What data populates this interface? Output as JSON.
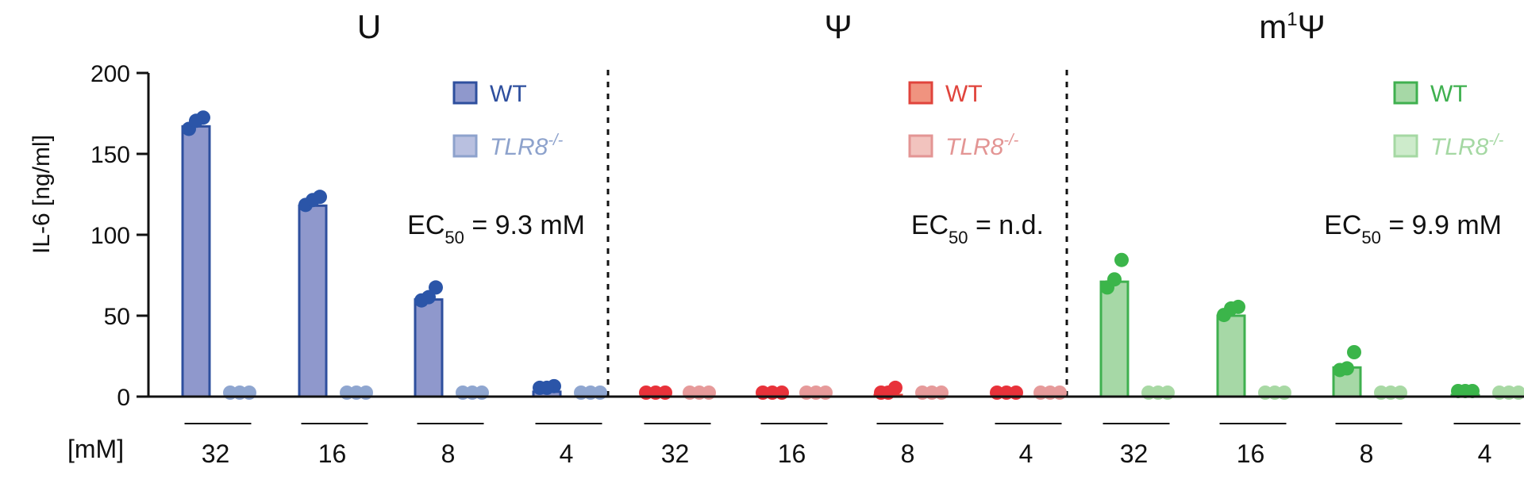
{
  "chart_data": {
    "type": "bar",
    "ylabel": "IL-6 [ng/ml]",
    "ylim": [
      0,
      200
    ],
    "yticks": [
      0,
      50,
      100,
      150,
      200
    ],
    "x_unit_label": "[mM]",
    "categories": [
      "32",
      "16",
      "8",
      "4"
    ],
    "panels": [
      {
        "id": "U",
        "title": "U",
        "ec50_label": "EC",
        "ec50_sub": "50",
        "ec50_value": " = 9.3 mM",
        "colors": {
          "wt_fill": "#8f98cc",
          "wt_edge": "#2e4f9e",
          "wt_dot": "#2b55a8",
          "ko_fill": "#b9c0e0",
          "ko_edge": "#8da2cc",
          "ko_dot": "#8fa6d0",
          "legend_text_wt": "#2e4f9e",
          "legend_text_ko": "#8da2cc"
        },
        "legend": {
          "wt": "WT",
          "ko": "TLR8",
          "ko_sup": "-/-"
        },
        "series": [
          {
            "name": "WT",
            "values": [
              167,
              118,
              60,
              3
            ],
            "points": [
              [
                163,
                170,
                168
              ],
              [
                116,
                121,
                119
              ],
              [
                57,
                65,
                59
              ],
              [
                3,
                4,
                3
              ]
            ]
          },
          {
            "name": "TLR8-/-",
            "values": [
              0,
              0,
              0,
              0
            ],
            "points": [
              [
                0,
                0,
                0
              ],
              [
                0,
                0,
                0
              ],
              [
                0,
                0,
                0
              ],
              [
                0,
                0,
                0
              ]
            ]
          }
        ]
      },
      {
        "id": "psi",
        "title": "Ψ",
        "ec50_label": "EC",
        "ec50_sub": "50",
        "ec50_value": " = n.d.",
        "colors": {
          "wt_fill": "#f0937f",
          "wt_edge": "#e0443c",
          "wt_dot": "#e8323a",
          "ko_fill": "#f2c3be",
          "ko_edge": "#e39594",
          "ko_dot": "#e69a9a",
          "legend_text_wt": "#e0443c",
          "legend_text_ko": "#e39594"
        },
        "legend": {
          "wt": "WT",
          "ko": "TLR8",
          "ko_sup": "-/-"
        },
        "series": [
          {
            "name": "WT",
            "values": [
              0,
              0,
              1,
              0
            ],
            "points": [
              [
                0,
                0,
                0
              ],
              [
                0,
                0,
                0
              ],
              [
                0,
                3,
                0
              ],
              [
                0,
                0,
                0
              ]
            ]
          },
          {
            "name": "TLR8-/-",
            "values": [
              0,
              0,
              0,
              0
            ],
            "points": [
              [
                0,
                0,
                0
              ],
              [
                0,
                0,
                0
              ],
              [
                0,
                0,
                0
              ],
              [
                0,
                0,
                0
              ]
            ]
          }
        ]
      },
      {
        "id": "m1psi",
        "title": "m",
        "title_sup": "1",
        "title_tail": "Ψ",
        "ec50_label": "EC",
        "ec50_sub": "50",
        "ec50_value": " = 9.9 mM",
        "colors": {
          "wt_fill": "#a6d8a6",
          "wt_edge": "#3fb04f",
          "wt_dot": "#3bb54a",
          "ko_fill": "#cdebcb",
          "ko_edge": "#a5d8a3",
          "ko_dot": "#a8d9a4",
          "legend_text_wt": "#3fb04f",
          "legend_text_ko": "#a5d8a3"
        },
        "legend": {
          "wt": "WT",
          "ko": "TLR8",
          "ko_sup": "-/-"
        },
        "series": [
          {
            "name": "WT",
            "values": [
              71,
              50,
              18,
              1
            ],
            "points": [
              [
                65,
                82,
                70
              ],
              [
                48,
                53,
                52
              ],
              [
                14,
                25,
                15
              ],
              [
                1,
                1,
                1
              ]
            ]
          },
          {
            "name": "TLR8-/-",
            "values": [
              0,
              0,
              0,
              0
            ],
            "points": [
              [
                0,
                0,
                0
              ],
              [
                0,
                0,
                0
              ],
              [
                0,
                0,
                0
              ],
              [
                0,
                0,
                0
              ]
            ]
          }
        ]
      }
    ]
  }
}
